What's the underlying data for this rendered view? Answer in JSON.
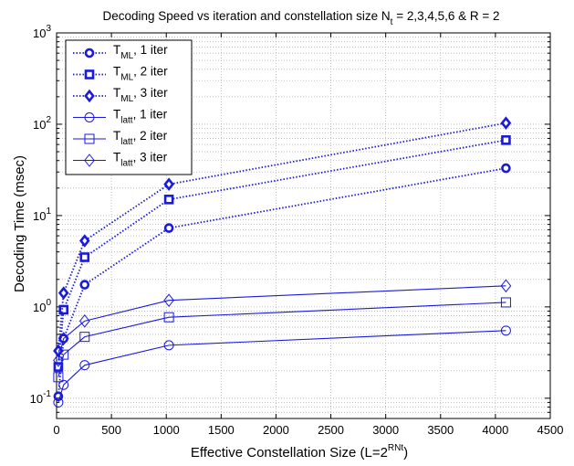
{
  "chart_data": {
    "type": "line",
    "title": {
      "main": "Decoding Speed vs iteration and constellation size N",
      "sub": "t",
      "rest": " = 2,3,4,5,6 & R = 2"
    },
    "xlabel": {
      "main": "Effective Constellation Size (L=2",
      "sup": "RNt",
      "end": ")"
    },
    "ylabel": "Decoding Time (msec)",
    "xlim": [
      0,
      4500
    ],
    "ylim": [
      0.06,
      1000
    ],
    "yscale": "log",
    "grid": true,
    "x_ticks": [
      "0",
      "500",
      "1000",
      "1500",
      "2000",
      "2500",
      "3000",
      "3500",
      "4000",
      "4500"
    ],
    "y_ticks": [
      {
        "base": "10",
        "exp": "-1",
        "value": 0.1
      },
      {
        "base": "10",
        "exp": "0",
        "value": 1
      },
      {
        "base": "10",
        "exp": "1",
        "value": 10
      },
      {
        "base": "10",
        "exp": "2",
        "value": 100
      },
      {
        "base": "10",
        "exp": "3",
        "value": 1000
      }
    ],
    "x": [
      16,
      64,
      256,
      1024,
      4096
    ],
    "series": [
      {
        "name": "T_ML, 1 iter",
        "label_main": "T",
        "label_sub": "ML",
        "label_rest": ", 1 iter",
        "marker": "circle",
        "filled": true,
        "style": "dotted",
        "values": [
          0.105,
          0.45,
          1.75,
          7.3,
          33
        ]
      },
      {
        "name": "T_ML, 2 iter",
        "label_main": "T",
        "label_sub": "ML",
        "label_rest": ", 2 iter",
        "marker": "square",
        "filled": true,
        "style": "dotted",
        "values": [
          0.22,
          0.93,
          3.5,
          15,
          67
        ]
      },
      {
        "name": "T_ML, 3 iter",
        "label_main": "T",
        "label_sub": "ML",
        "label_rest": ", 3 iter",
        "marker": "diamond",
        "filled": true,
        "style": "dotted",
        "values": [
          0.33,
          1.42,
          5.3,
          22,
          103
        ]
      },
      {
        "name": "T_latt, 1 iter",
        "label_main": "T",
        "label_sub": "latt",
        "label_rest": ", 1 iter",
        "marker": "circle",
        "filled": false,
        "style": "solid",
        "values": [
          0.09,
          0.14,
          0.23,
          0.38,
          0.55
        ]
      },
      {
        "name": "T_latt, 2 iter",
        "label_main": "T",
        "label_sub": "latt",
        "label_rest": ", 2 iter",
        "marker": "square",
        "filled": false,
        "style": "solid",
        "values": [
          0.17,
          0.3,
          0.47,
          0.77,
          1.12
        ]
      },
      {
        "name": "T_latt, 3 iter",
        "label_main": "T",
        "label_sub": "latt",
        "label_rest": ", 3 iter",
        "marker": "diamond",
        "filled": false,
        "style": "solid",
        "values": [
          0.26,
          0.45,
          0.7,
          1.18,
          1.7
        ]
      }
    ],
    "legend_position": "top-left",
    "colors": {
      "series": "#1a1adb",
      "grid": "#b0b0b0",
      "axis": "#000000"
    }
  }
}
